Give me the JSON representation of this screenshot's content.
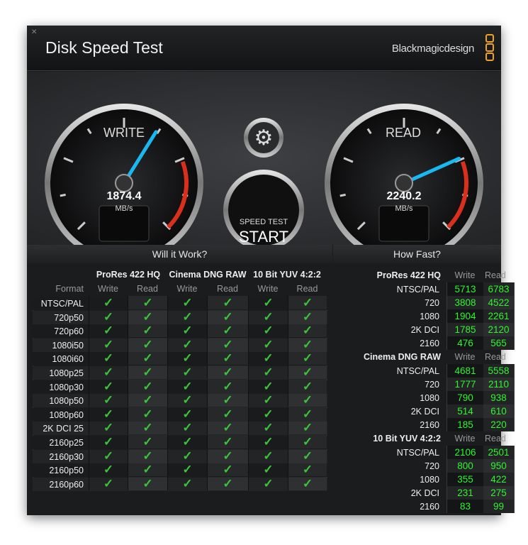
{
  "window": {
    "title": "Disk Speed Test",
    "brand": "Blackmagicdesign",
    "close_icon": "close-icon"
  },
  "gauges": {
    "write": {
      "label": "WRITE",
      "value": "1874.4",
      "unit": "MB/s"
    },
    "read": {
      "label": "READ",
      "value": "2240.2",
      "unit": "MB/s"
    },
    "needle_color": "#1ab8f0"
  },
  "start_button": {
    "line1": "SPEED TEST",
    "line2": "START"
  },
  "settings_icon": "gear-icon",
  "will_it_work": {
    "title": "Will it Work?",
    "codecs": [
      "ProRes 422 HQ",
      "Cinema DNG RAW",
      "10 Bit YUV 4:2:2"
    ],
    "format_label": "Format",
    "sub_headers": [
      "Write",
      "Read",
      "Write",
      "Read",
      "Write",
      "Read"
    ],
    "rows": [
      "NTSC/PAL",
      "720p50",
      "720p60",
      "1080i50",
      "1080i60",
      "1080p25",
      "1080p30",
      "1080p50",
      "1080p60",
      "2K DCI 25",
      "2160p25",
      "2160p30",
      "2160p50",
      "2160p60"
    ],
    "result": "✓",
    "all_pass": true
  },
  "how_fast": {
    "title": "How Fast?",
    "groups": [
      {
        "codec": "ProRes 422 HQ",
        "write_label": "Write",
        "read_label": "Read",
        "rows": [
          {
            "format": "NTSC/PAL",
            "write": "5713",
            "read": "6783"
          },
          {
            "format": "720",
            "write": "3808",
            "read": "4522"
          },
          {
            "format": "1080",
            "write": "1904",
            "read": "2261"
          },
          {
            "format": "2K DCI",
            "write": "1785",
            "read": "2120"
          },
          {
            "format": "2160",
            "write": "476",
            "read": "565"
          }
        ]
      },
      {
        "codec": "Cinema DNG RAW",
        "write_label": "Write",
        "read_label": "Read",
        "rows": [
          {
            "format": "NTSC/PAL",
            "write": "4681",
            "read": "5558"
          },
          {
            "format": "720",
            "write": "1777",
            "read": "2110"
          },
          {
            "format": "1080",
            "write": "790",
            "read": "938"
          },
          {
            "format": "2K DCI",
            "write": "514",
            "read": "610"
          },
          {
            "format": "2160",
            "write": "185",
            "read": "220"
          }
        ]
      },
      {
        "codec": "10 Bit YUV 4:2:2",
        "write_label": "Write",
        "read_label": "Read",
        "rows": [
          {
            "format": "NTSC/PAL",
            "write": "2106",
            "read": "2501"
          },
          {
            "format": "720",
            "write": "800",
            "read": "950"
          },
          {
            "format": "1080",
            "write": "355",
            "read": "422"
          },
          {
            "format": "2K DCI",
            "write": "231",
            "read": "275"
          },
          {
            "format": "2160",
            "write": "83",
            "read": "99"
          }
        ]
      }
    ]
  }
}
